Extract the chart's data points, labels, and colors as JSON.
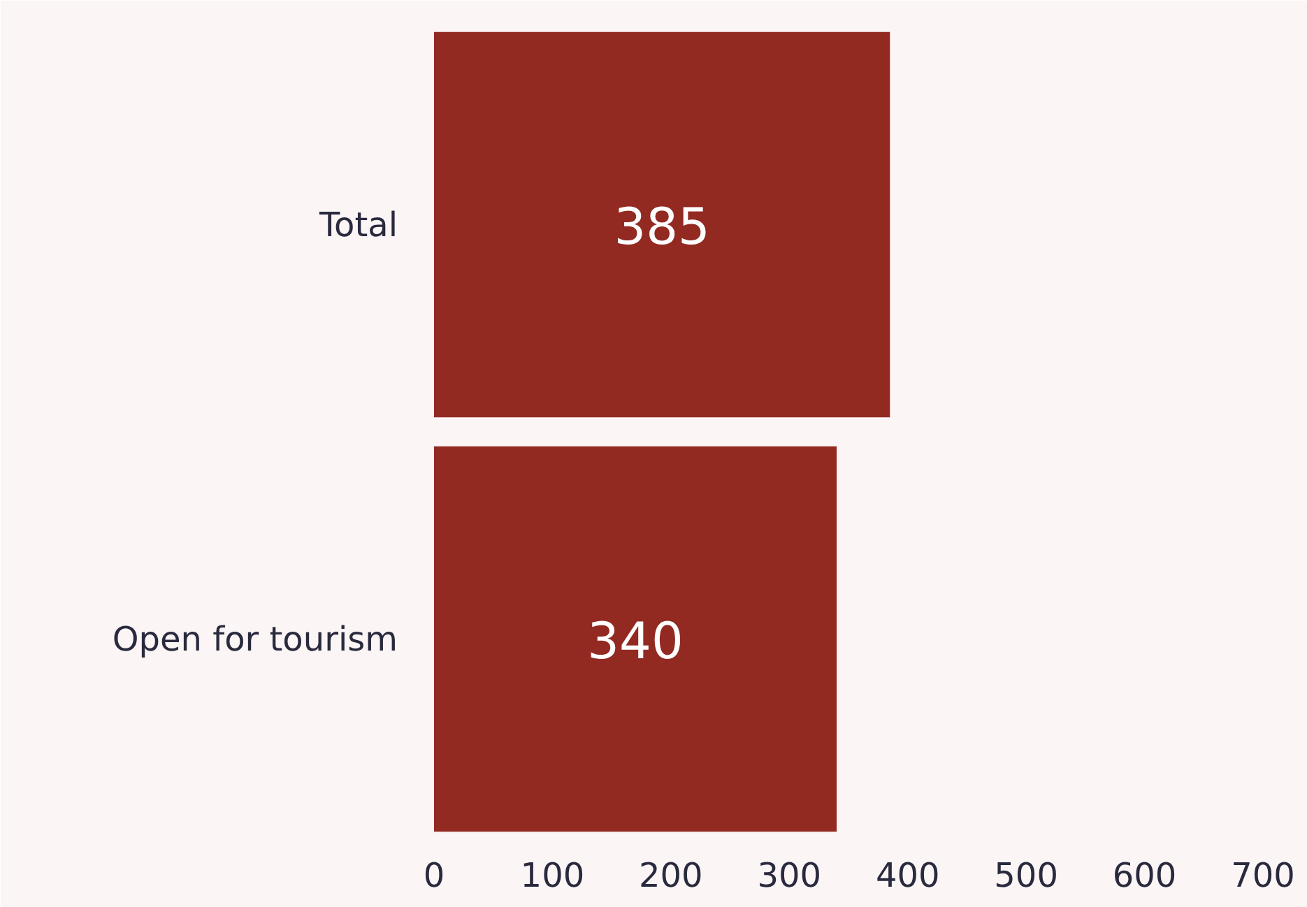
{
  "chart_data": {
    "type": "bar",
    "orientation": "horizontal",
    "categories": [
      "Total",
      "Open for tourism"
    ],
    "values": [
      385,
      340
    ],
    "color": "#922a22",
    "xlim": [
      0,
      700
    ],
    "xticks": [
      0,
      100,
      200,
      300,
      400,
      500,
      600,
      700
    ],
    "data_labels": true,
    "grid": false
  }
}
